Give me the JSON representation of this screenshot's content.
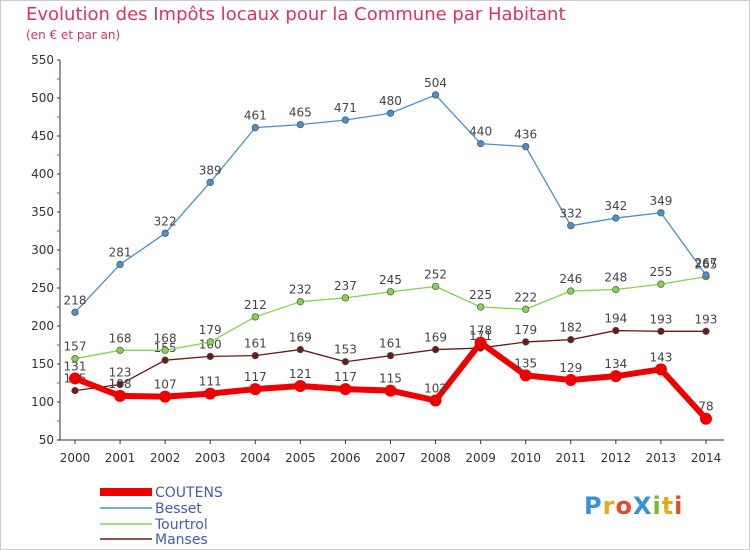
{
  "header": {
    "title": "Evolution des Impôts locaux pour la Commune par Habitant",
    "subtitle": "(en € et par an)"
  },
  "logo": {
    "text": "ProXiti",
    "letters": [
      "P",
      "r",
      "o",
      "X",
      "i",
      "t",
      "i"
    ],
    "colors": [
      "#3d8fd6",
      "#e8a81c",
      "#e34b2b",
      "#3d8fd6",
      "#7ab82f",
      "#e8a81c",
      "#e34b2b"
    ]
  },
  "chart_data": {
    "type": "line",
    "title": "Evolution des Impôts locaux pour la Commune par Habitant",
    "subtitle": "(en € et par an)",
    "xlabel": "",
    "ylabel": "",
    "ylim": [
      50,
      550
    ],
    "yticks": [
      50,
      100,
      150,
      200,
      250,
      300,
      350,
      400,
      450,
      500,
      550
    ],
    "grid": false,
    "legend": "bottom-left",
    "x": [
      "2000",
      "2001",
      "2002",
      "2003",
      "2004",
      "2005",
      "2006",
      "2007",
      "2008",
      "2009",
      "2010",
      "2011",
      "2012",
      "2013",
      "2014"
    ],
    "series": [
      {
        "name": "Manses",
        "color": "#6b1a1a",
        "values": [
          115,
          123,
          155,
          160,
          161,
          169,
          153,
          161,
          169,
          171,
          179,
          182,
          194,
          193,
          193
        ]
      },
      {
        "name": "Tourtrol",
        "color": "#86d353",
        "values": [
          157,
          168,
          168,
          179,
          212,
          232,
          237,
          245,
          252,
          225,
          222,
          246,
          248,
          255,
          265
        ]
      },
      {
        "name": "Besset",
        "color": "#4a8fce",
        "values": [
          218,
          281,
          322,
          389,
          461,
          465,
          471,
          480,
          504,
          440,
          436,
          332,
          342,
          349,
          267
        ]
      },
      {
        "name": "COUTENS",
        "color": "#ee0000",
        "values": [
          131,
          108,
          107,
          111,
          117,
          121,
          117,
          115,
          102,
          178,
          135,
          129,
          134,
          143,
          78
        ]
      }
    ],
    "legend_order": [
      "COUTENS",
      "Besset",
      "Tourtrol",
      "Manses"
    ]
  }
}
